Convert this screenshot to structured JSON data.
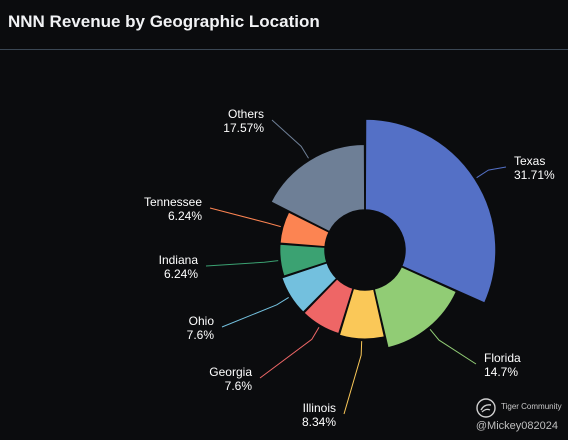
{
  "title": "NNN Revenue by Geographic Location",
  "chart_data": {
    "type": "pie",
    "title": "NNN Revenue by Geographic Location",
    "donut": true,
    "slices": [
      {
        "name": "Texas",
        "value": 31.71,
        "label": "31.71%",
        "color": "#5470c6"
      },
      {
        "name": "Florida",
        "value": 14.7,
        "label": "14.7%",
        "color": "#91cc75"
      },
      {
        "name": "Illinois",
        "value": 8.34,
        "label": "8.34%",
        "color": "#fac858"
      },
      {
        "name": "Georgia",
        "value": 7.6,
        "label": "7.6%",
        "color": "#ee6666"
      },
      {
        "name": "Ohio",
        "value": 7.6,
        "label": "7.6%",
        "color": "#73c0de"
      },
      {
        "name": "Indiana",
        "value": 6.24,
        "label": "6.24%",
        "color": "#3ba272"
      },
      {
        "name": "Tennessee",
        "value": 6.24,
        "label": "6.24%",
        "color": "#fc8452"
      },
      {
        "name": "Others",
        "value": 17.57,
        "label": "17.57%",
        "color": "#6e7f96"
      }
    ]
  },
  "footer": {
    "brand": "Tiger Community",
    "credit": "@Mickey082024"
  }
}
